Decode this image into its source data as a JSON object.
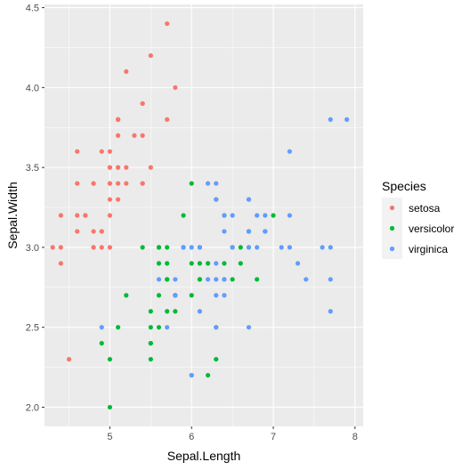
{
  "chart_data": {
    "type": "scatter",
    "title": "",
    "xlabel": "Sepal.Length",
    "ylabel": "Sepal.Width",
    "xlim": [
      4.2,
      8.1
    ],
    "ylim": [
      1.88,
      4.52
    ],
    "x_ticks": [
      5,
      6,
      7,
      8
    ],
    "y_ticks": [
      2.0,
      2.5,
      3.0,
      3.5,
      4.0,
      4.5
    ],
    "x_tick_labels": [
      "5",
      "6",
      "7",
      "8"
    ],
    "y_tick_labels": [
      "2.0",
      "2.5",
      "3.0",
      "3.5",
      "4.0",
      "4.5"
    ],
    "grid": true,
    "legend": {
      "title": "Species",
      "placement": "right"
    },
    "colors": {
      "panel": "#ebebeb",
      "grid": "#ffffff"
    },
    "series": [
      {
        "name": "setosa",
        "color": "#F8766D",
        "x": [
          5.1,
          4.9,
          4.7,
          4.6,
          5.0,
          5.4,
          4.6,
          5.0,
          4.4,
          4.9,
          5.4,
          4.8,
          4.8,
          4.3,
          5.8,
          5.7,
          5.4,
          5.1,
          5.7,
          5.1,
          5.4,
          5.1,
          4.6,
          5.1,
          4.8,
          5.0,
          5.0,
          5.2,
          5.2,
          4.7,
          4.8,
          5.4,
          5.2,
          5.5,
          4.9,
          5.0,
          5.5,
          4.9,
          4.4,
          5.1,
          5.0,
          4.5,
          4.4,
          5.0,
          5.1,
          4.8,
          5.1,
          4.6,
          5.3,
          5.0
        ],
        "y": [
          3.5,
          3.0,
          3.2,
          3.1,
          3.6,
          3.9,
          3.4,
          3.4,
          2.9,
          3.1,
          3.7,
          3.4,
          3.0,
          3.0,
          4.0,
          4.4,
          3.9,
          3.5,
          3.8,
          3.8,
          3.4,
          3.7,
          3.6,
          3.3,
          3.4,
          3.0,
          3.4,
          3.5,
          3.4,
          3.2,
          3.1,
          3.4,
          4.1,
          4.2,
          3.1,
          3.2,
          3.5,
          3.6,
          3.0,
          3.4,
          3.5,
          2.3,
          3.2,
          3.5,
          3.8,
          3.0,
          3.8,
          3.2,
          3.7,
          3.3
        ]
      },
      {
        "name": "versicolor",
        "color": "#00BA38",
        "x": [
          7.0,
          6.4,
          6.9,
          5.5,
          6.5,
          5.7,
          6.3,
          4.9,
          6.6,
          5.2,
          5.0,
          5.9,
          6.0,
          6.1,
          5.6,
          6.7,
          5.6,
          5.8,
          6.2,
          5.6,
          5.9,
          6.1,
          6.3,
          6.1,
          6.4,
          6.6,
          6.8,
          6.7,
          6.0,
          5.7,
          5.5,
          5.5,
          5.8,
          6.0,
          5.4,
          6.0,
          6.7,
          6.3,
          5.6,
          5.5,
          5.5,
          6.1,
          5.8,
          5.0,
          5.6,
          5.7,
          5.7,
          6.2,
          5.1,
          5.7
        ],
        "y": [
          3.2,
          3.2,
          3.1,
          2.3,
          2.8,
          2.8,
          3.3,
          2.4,
          2.9,
          2.7,
          2.0,
          3.0,
          2.2,
          2.9,
          2.9,
          3.1,
          3.0,
          2.7,
          2.2,
          2.5,
          3.2,
          2.8,
          2.5,
          2.8,
          2.9,
          3.0,
          2.8,
          3.0,
          2.9,
          2.6,
          2.4,
          2.4,
          2.7,
          2.7,
          3.0,
          3.4,
          3.1,
          2.3,
          3.0,
          2.5,
          2.6,
          3.0,
          2.6,
          2.3,
          2.7,
          3.0,
          2.9,
          2.9,
          2.5,
          2.8
        ]
      },
      {
        "name": "virginica",
        "color": "#619CFF",
        "x": [
          6.3,
          5.8,
          7.1,
          6.3,
          6.5,
          7.6,
          4.9,
          7.3,
          6.7,
          7.2,
          6.5,
          6.4,
          6.8,
          5.7,
          5.8,
          6.4,
          6.5,
          7.7,
          7.7,
          6.0,
          6.9,
          5.6,
          7.7,
          6.3,
          6.7,
          7.2,
          6.2,
          6.1,
          6.4,
          7.2,
          7.4,
          7.9,
          6.4,
          6.3,
          6.1,
          7.7,
          6.3,
          6.4,
          6.0,
          6.9,
          6.7,
          6.9,
          5.8,
          6.8,
          6.7,
          6.7,
          6.3,
          6.5,
          6.2,
          5.9
        ],
        "y": [
          3.3,
          2.7,
          3.0,
          2.9,
          3.0,
          3.0,
          2.5,
          2.9,
          2.5,
          3.6,
          3.2,
          2.7,
          3.0,
          2.5,
          2.8,
          3.2,
          3.0,
          3.8,
          2.6,
          2.2,
          3.2,
          2.8,
          2.8,
          2.7,
          3.3,
          3.2,
          2.8,
          3.0,
          2.8,
          3.0,
          2.8,
          3.8,
          2.8,
          2.8,
          2.6,
          3.0,
          3.4,
          3.1,
          3.0,
          3.1,
          3.1,
          3.1,
          2.7,
          3.2,
          3.3,
          3.0,
          2.5,
          3.0,
          3.4,
          3.0
        ]
      }
    ]
  }
}
